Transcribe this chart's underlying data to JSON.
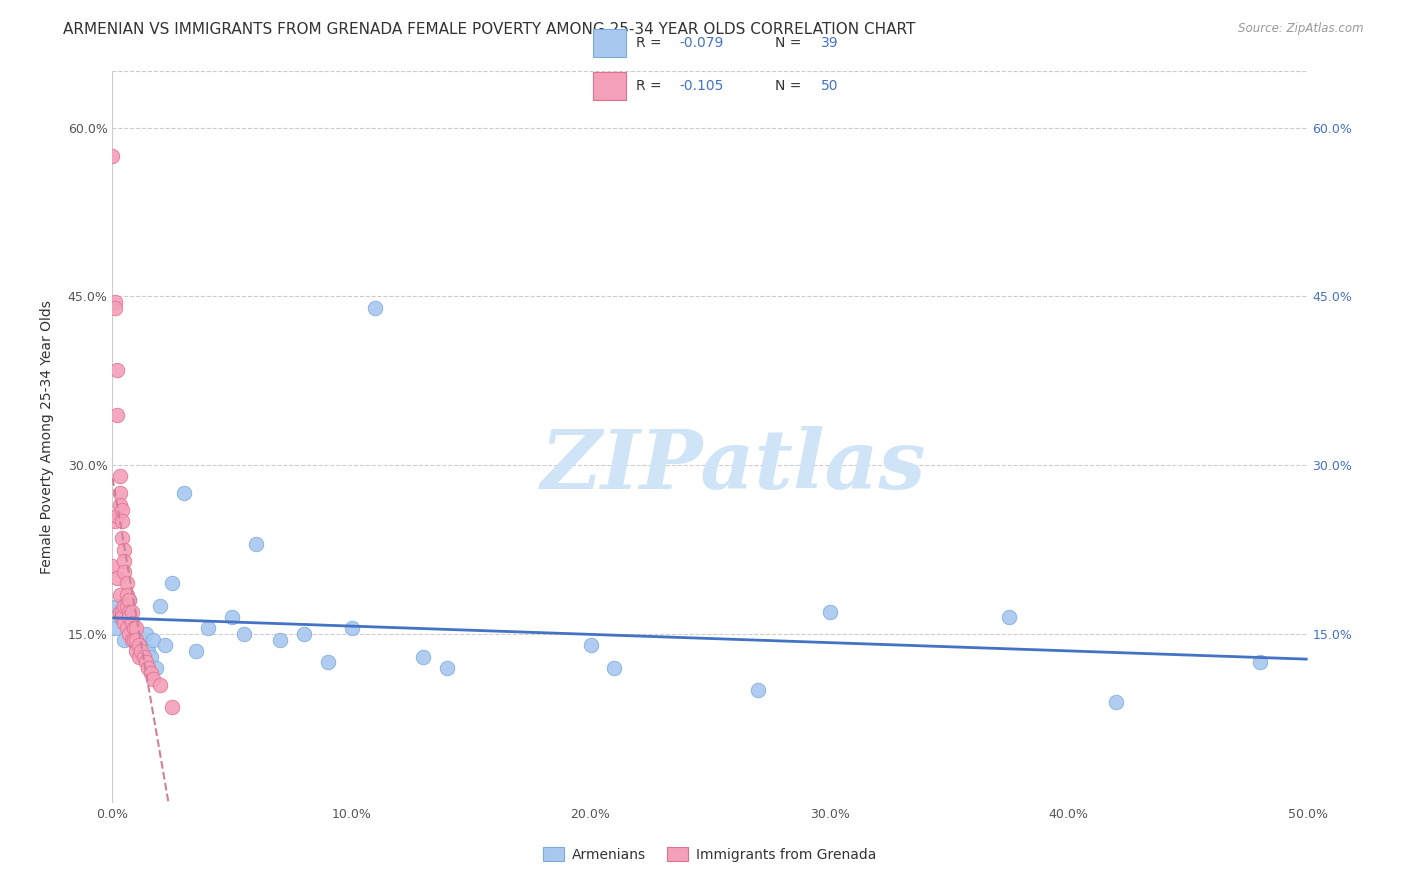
{
  "title": "ARMENIAN VS IMMIGRANTS FROM GRENADA FEMALE POVERTY AMONG 25-34 YEAR OLDS CORRELATION CHART",
  "source": "Source: ZipAtlas.com",
  "ylabel": "Female Poverty Among 25-34 Year Olds",
  "xlim": [
    0.0,
    0.5
  ],
  "ylim": [
    0.0,
    0.65
  ],
  "xticks": [
    0.0,
    0.1,
    0.2,
    0.3,
    0.4,
    0.5
  ],
  "xtick_labels": [
    "0.0%",
    "10.0%",
    "20.0%",
    "30.0%",
    "40.0%",
    "50.0%"
  ],
  "yticks": [
    0.0,
    0.15,
    0.3,
    0.45,
    0.6
  ],
  "ytick_labels": [
    "",
    "15.0%",
    "30.0%",
    "45.0%",
    "60.0%"
  ],
  "armenian_color": "#a8c8f0",
  "armenian_edge_color": "#7aaad8",
  "grenada_color": "#f4a0b8",
  "grenada_edge_color": "#e07090",
  "armenian_line_color": "#4472c4",
  "grenada_line_color": "#d08098",
  "legend_R_color": "#4472c4",
  "legend_text_color": "#333333",
  "R_armenian": "-0.079",
  "N_armenian": "39",
  "R_grenada": "-0.105",
  "N_grenada": "50",
  "armenian_x": [
    0.001,
    0.002,
    0.003,
    0.005,
    0.007,
    0.008,
    0.009,
    0.01,
    0.011,
    0.012,
    0.013,
    0.014,
    0.015,
    0.016,
    0.017,
    0.018,
    0.02,
    0.022,
    0.025,
    0.03,
    0.035,
    0.04,
    0.05,
    0.055,
    0.06,
    0.07,
    0.08,
    0.09,
    0.1,
    0.11,
    0.13,
    0.14,
    0.2,
    0.21,
    0.27,
    0.3,
    0.375,
    0.42,
    0.48
  ],
  "armenian_y": [
    0.155,
    0.175,
    0.165,
    0.145,
    0.18,
    0.16,
    0.15,
    0.14,
    0.135,
    0.145,
    0.13,
    0.15,
    0.135,
    0.13,
    0.145,
    0.12,
    0.175,
    0.14,
    0.195,
    0.275,
    0.135,
    0.155,
    0.165,
    0.15,
    0.23,
    0.145,
    0.15,
    0.125,
    0.155,
    0.44,
    0.13,
    0.12,
    0.14,
    0.12,
    0.1,
    0.17,
    0.165,
    0.09,
    0.125
  ],
  "grenada_x": [
    0.0,
    0.0,
    0.001,
    0.001,
    0.001,
    0.002,
    0.002,
    0.002,
    0.002,
    0.003,
    0.003,
    0.003,
    0.003,
    0.003,
    0.004,
    0.004,
    0.004,
    0.004,
    0.004,
    0.005,
    0.005,
    0.005,
    0.005,
    0.005,
    0.006,
    0.006,
    0.006,
    0.006,
    0.007,
    0.007,
    0.007,
    0.007,
    0.008,
    0.008,
    0.008,
    0.009,
    0.009,
    0.01,
    0.01,
    0.01,
    0.011,
    0.011,
    0.012,
    0.013,
    0.014,
    0.015,
    0.016,
    0.017,
    0.02,
    0.025
  ],
  "grenada_y": [
    0.575,
    0.21,
    0.445,
    0.44,
    0.25,
    0.385,
    0.345,
    0.255,
    0.2,
    0.29,
    0.275,
    0.265,
    0.185,
    0.17,
    0.26,
    0.25,
    0.235,
    0.17,
    0.165,
    0.225,
    0.215,
    0.205,
    0.175,
    0.16,
    0.195,
    0.185,
    0.175,
    0.155,
    0.18,
    0.17,
    0.165,
    0.15,
    0.17,
    0.16,
    0.145,
    0.155,
    0.145,
    0.155,
    0.145,
    0.135,
    0.14,
    0.13,
    0.135,
    0.13,
    0.125,
    0.12,
    0.115,
    0.11,
    0.105,
    0.085
  ],
  "background_color": "#ffffff",
  "grid_color": "#cccccc",
  "title_fontsize": 11,
  "axis_label_fontsize": 10,
  "tick_fontsize": 9,
  "watermark_text": "ZIPatlas",
  "watermark_color": "#d0e4f7",
  "watermark_fontsize": 60
}
